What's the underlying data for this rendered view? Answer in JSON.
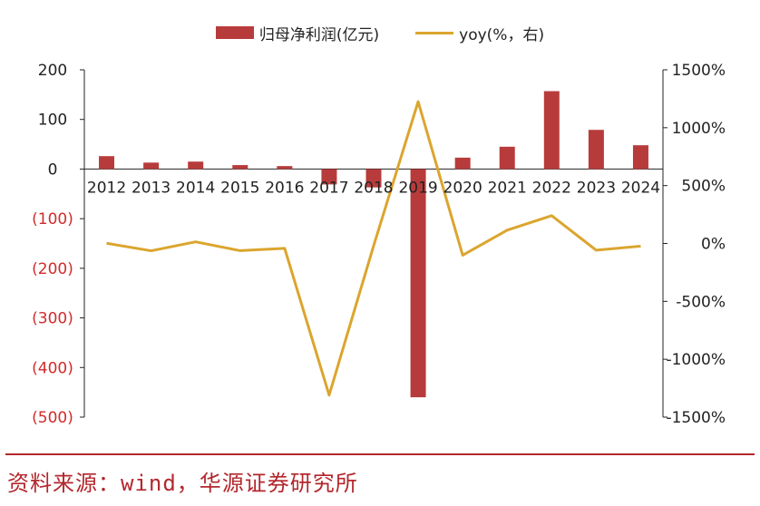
{
  "legend": {
    "bar_label": "归母净利润(亿元)",
    "line_label": "yoy(%，右)"
  },
  "source": "资料来源：wind，华源证券研究所",
  "colors": {
    "bar": "#b83b3b",
    "line": "#dba52e",
    "axis": "#222222",
    "negative_tick": "#d12b2b",
    "divider": "#b3272d"
  },
  "chart_data": {
    "type": "bar",
    "categories": [
      "2012",
      "2013",
      "2014",
      "2015",
      "2016",
      "2017",
      "2018",
      "2019",
      "2020",
      "2021",
      "2022",
      "2023",
      "2024"
    ],
    "series": [
      {
        "name": "归母净利润(亿元)",
        "type": "bar",
        "axis": "left",
        "values": [
          26,
          13,
          15,
          8,
          6,
          -31,
          -37,
          -460,
          23,
          45,
          157,
          79,
          48
        ]
      },
      {
        "name": "yoy(%，右)",
        "type": "line",
        "axis": "right",
        "values": [
          2,
          -63,
          14,
          -62,
          -42,
          -1310,
          -19,
          1225,
          -101,
          115,
          240,
          -58,
          -23
        ]
      }
    ],
    "left_axis": {
      "ylim": [
        -500,
        200
      ],
      "ticks": [
        200,
        100,
        0,
        -100,
        -200,
        -300,
        -400,
        -500
      ],
      "tick_labels": [
        "200",
        "100",
        "0",
        "(100)",
        "(200)",
        "(300)",
        "(400)",
        "(500)"
      ]
    },
    "right_axis": {
      "ylim": [
        -1500,
        1500
      ],
      "ticks": [
        1500,
        1000,
        500,
        0,
        -500,
        -1000,
        -1500
      ],
      "tick_labels": [
        "1500%",
        "1000%",
        "500%",
        "0%",
        "-500%",
        "-1000%",
        "-1500%"
      ]
    },
    "legend_position": "top-center",
    "grid": false
  }
}
